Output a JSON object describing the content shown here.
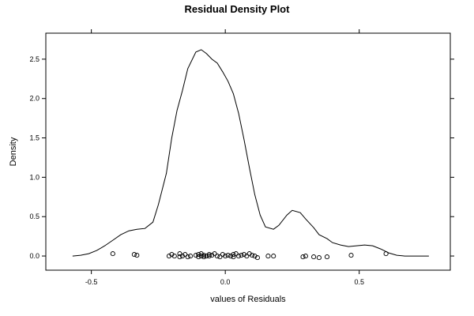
{
  "chart_data": {
    "type": "line",
    "title": "Residual Density Plot",
    "xlabel": "values of Residuals",
    "ylabel": "Density",
    "xlim": [
      -0.67,
      0.84
    ],
    "ylim": [
      -0.18,
      2.83
    ],
    "x_ticks": [
      -0.5,
      0.0,
      0.5
    ],
    "x_tick_labels": [
      "-0.5",
      "0.0",
      "0.5"
    ],
    "y_ticks": [
      0.0,
      0.5,
      1.0,
      1.5,
      2.0,
      2.5
    ],
    "y_tick_labels": [
      "0.0",
      "0.5",
      "1.0",
      "1.5",
      "2.0",
      "2.5"
    ],
    "grid": false,
    "series": [
      {
        "type": "line",
        "color": "#000000",
        "x": [
          -0.57,
          -0.54,
          -0.51,
          -0.48,
          -0.45,
          -0.42,
          -0.39,
          -0.36,
          -0.33,
          -0.3,
          -0.27,
          -0.25,
          -0.22,
          -0.2,
          -0.18,
          -0.16,
          -0.14,
          -0.11,
          -0.09,
          -0.07,
          -0.05,
          -0.03,
          -0.01,
          0.01,
          0.03,
          0.05,
          0.07,
          0.09,
          0.11,
          0.13,
          0.15,
          0.18,
          0.2,
          0.23,
          0.25,
          0.28,
          0.3,
          0.33,
          0.35,
          0.38,
          0.4,
          0.43,
          0.46,
          0.49,
          0.52,
          0.55,
          0.58,
          0.61,
          0.64,
          0.67,
          0.7,
          0.73,
          0.76
        ],
        "y": [
          0.0,
          0.01,
          0.03,
          0.07,
          0.13,
          0.2,
          0.27,
          0.32,
          0.34,
          0.35,
          0.43,
          0.65,
          1.05,
          1.5,
          1.85,
          2.1,
          2.38,
          2.59,
          2.62,
          2.57,
          2.5,
          2.45,
          2.34,
          2.22,
          2.06,
          1.81,
          1.48,
          1.12,
          0.78,
          0.52,
          0.37,
          0.34,
          0.39,
          0.52,
          0.58,
          0.55,
          0.47,
          0.36,
          0.27,
          0.22,
          0.17,
          0.14,
          0.12,
          0.13,
          0.14,
          0.13,
          0.09,
          0.04,
          0.01,
          0.0,
          0.0,
          0.0,
          0.0
        ]
      },
      {
        "type": "scatter",
        "marker": "open-circle",
        "color": "#000000",
        "x": [
          -0.42,
          -0.34,
          -0.33,
          -0.21,
          -0.2,
          -0.19,
          -0.17,
          -0.17,
          -0.16,
          -0.15,
          -0.14,
          -0.13,
          -0.11,
          -0.1,
          -0.1,
          -0.09,
          -0.09,
          -0.08,
          -0.08,
          -0.07,
          -0.06,
          -0.06,
          -0.05,
          -0.04,
          -0.03,
          -0.02,
          -0.01,
          0.0,
          0.01,
          0.02,
          0.03,
          0.03,
          0.04,
          0.05,
          0.06,
          0.07,
          0.08,
          0.09,
          0.1,
          0.11,
          0.12,
          0.16,
          0.18,
          0.29,
          0.3,
          0.33,
          0.35,
          0.38,
          0.47,
          0.6
        ],
        "y": [
          0.03,
          0.02,
          0.01,
          0.0,
          0.02,
          0.0,
          0.03,
          -0.01,
          0.0,
          0.02,
          -0.01,
          0.0,
          0.01,
          0.02,
          -0.01,
          0.0,
          0.03,
          0.01,
          -0.01,
          0.0,
          0.02,
          0.0,
          0.01,
          0.03,
          0.0,
          -0.01,
          0.02,
          0.0,
          0.01,
          0.0,
          0.02,
          -0.01,
          0.03,
          0.0,
          0.01,
          0.02,
          0.0,
          0.03,
          0.01,
          0.0,
          -0.02,
          0.0,
          0.0,
          -0.01,
          0.0,
          -0.01,
          -0.02,
          -0.01,
          0.01,
          0.03
        ]
      }
    ]
  }
}
